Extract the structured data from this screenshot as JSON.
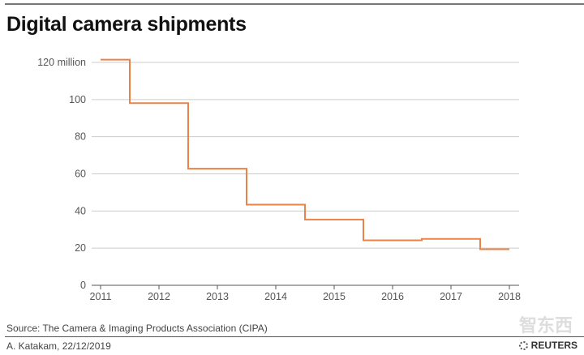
{
  "chart_data": {
    "type": "line",
    "step": true,
    "title": "Digital camera shipments",
    "xlabel": "",
    "ylabel": "",
    "x": [
      2011,
      2012,
      2013,
      2014,
      2015,
      2016,
      2017,
      2018
    ],
    "values": [
      121.5,
      98.1,
      62.8,
      43.4,
      35.4,
      24.2,
      25.0,
      19.4
    ],
    "xlim": [
      2011,
      2018
    ],
    "ylim": [
      0,
      120
    ],
    "yticks": [
      0,
      20,
      40,
      60,
      80,
      100,
      120
    ],
    "ytick_labels": [
      "0",
      "20",
      "40",
      "60",
      "80",
      "100",
      "120 million"
    ],
    "xtick_labels": [
      "2011",
      "2012",
      "2013",
      "2014",
      "2015",
      "2016",
      "2017",
      "2018"
    ],
    "grid": "horizontal",
    "color": "#e8834a"
  },
  "footer": {
    "source": "Source: The Camera & Imaging Products Association (CIPA)",
    "byline": "A. Katakam,  22/12/2019",
    "logo": "REUTERS",
    "watermark": "智东西"
  }
}
